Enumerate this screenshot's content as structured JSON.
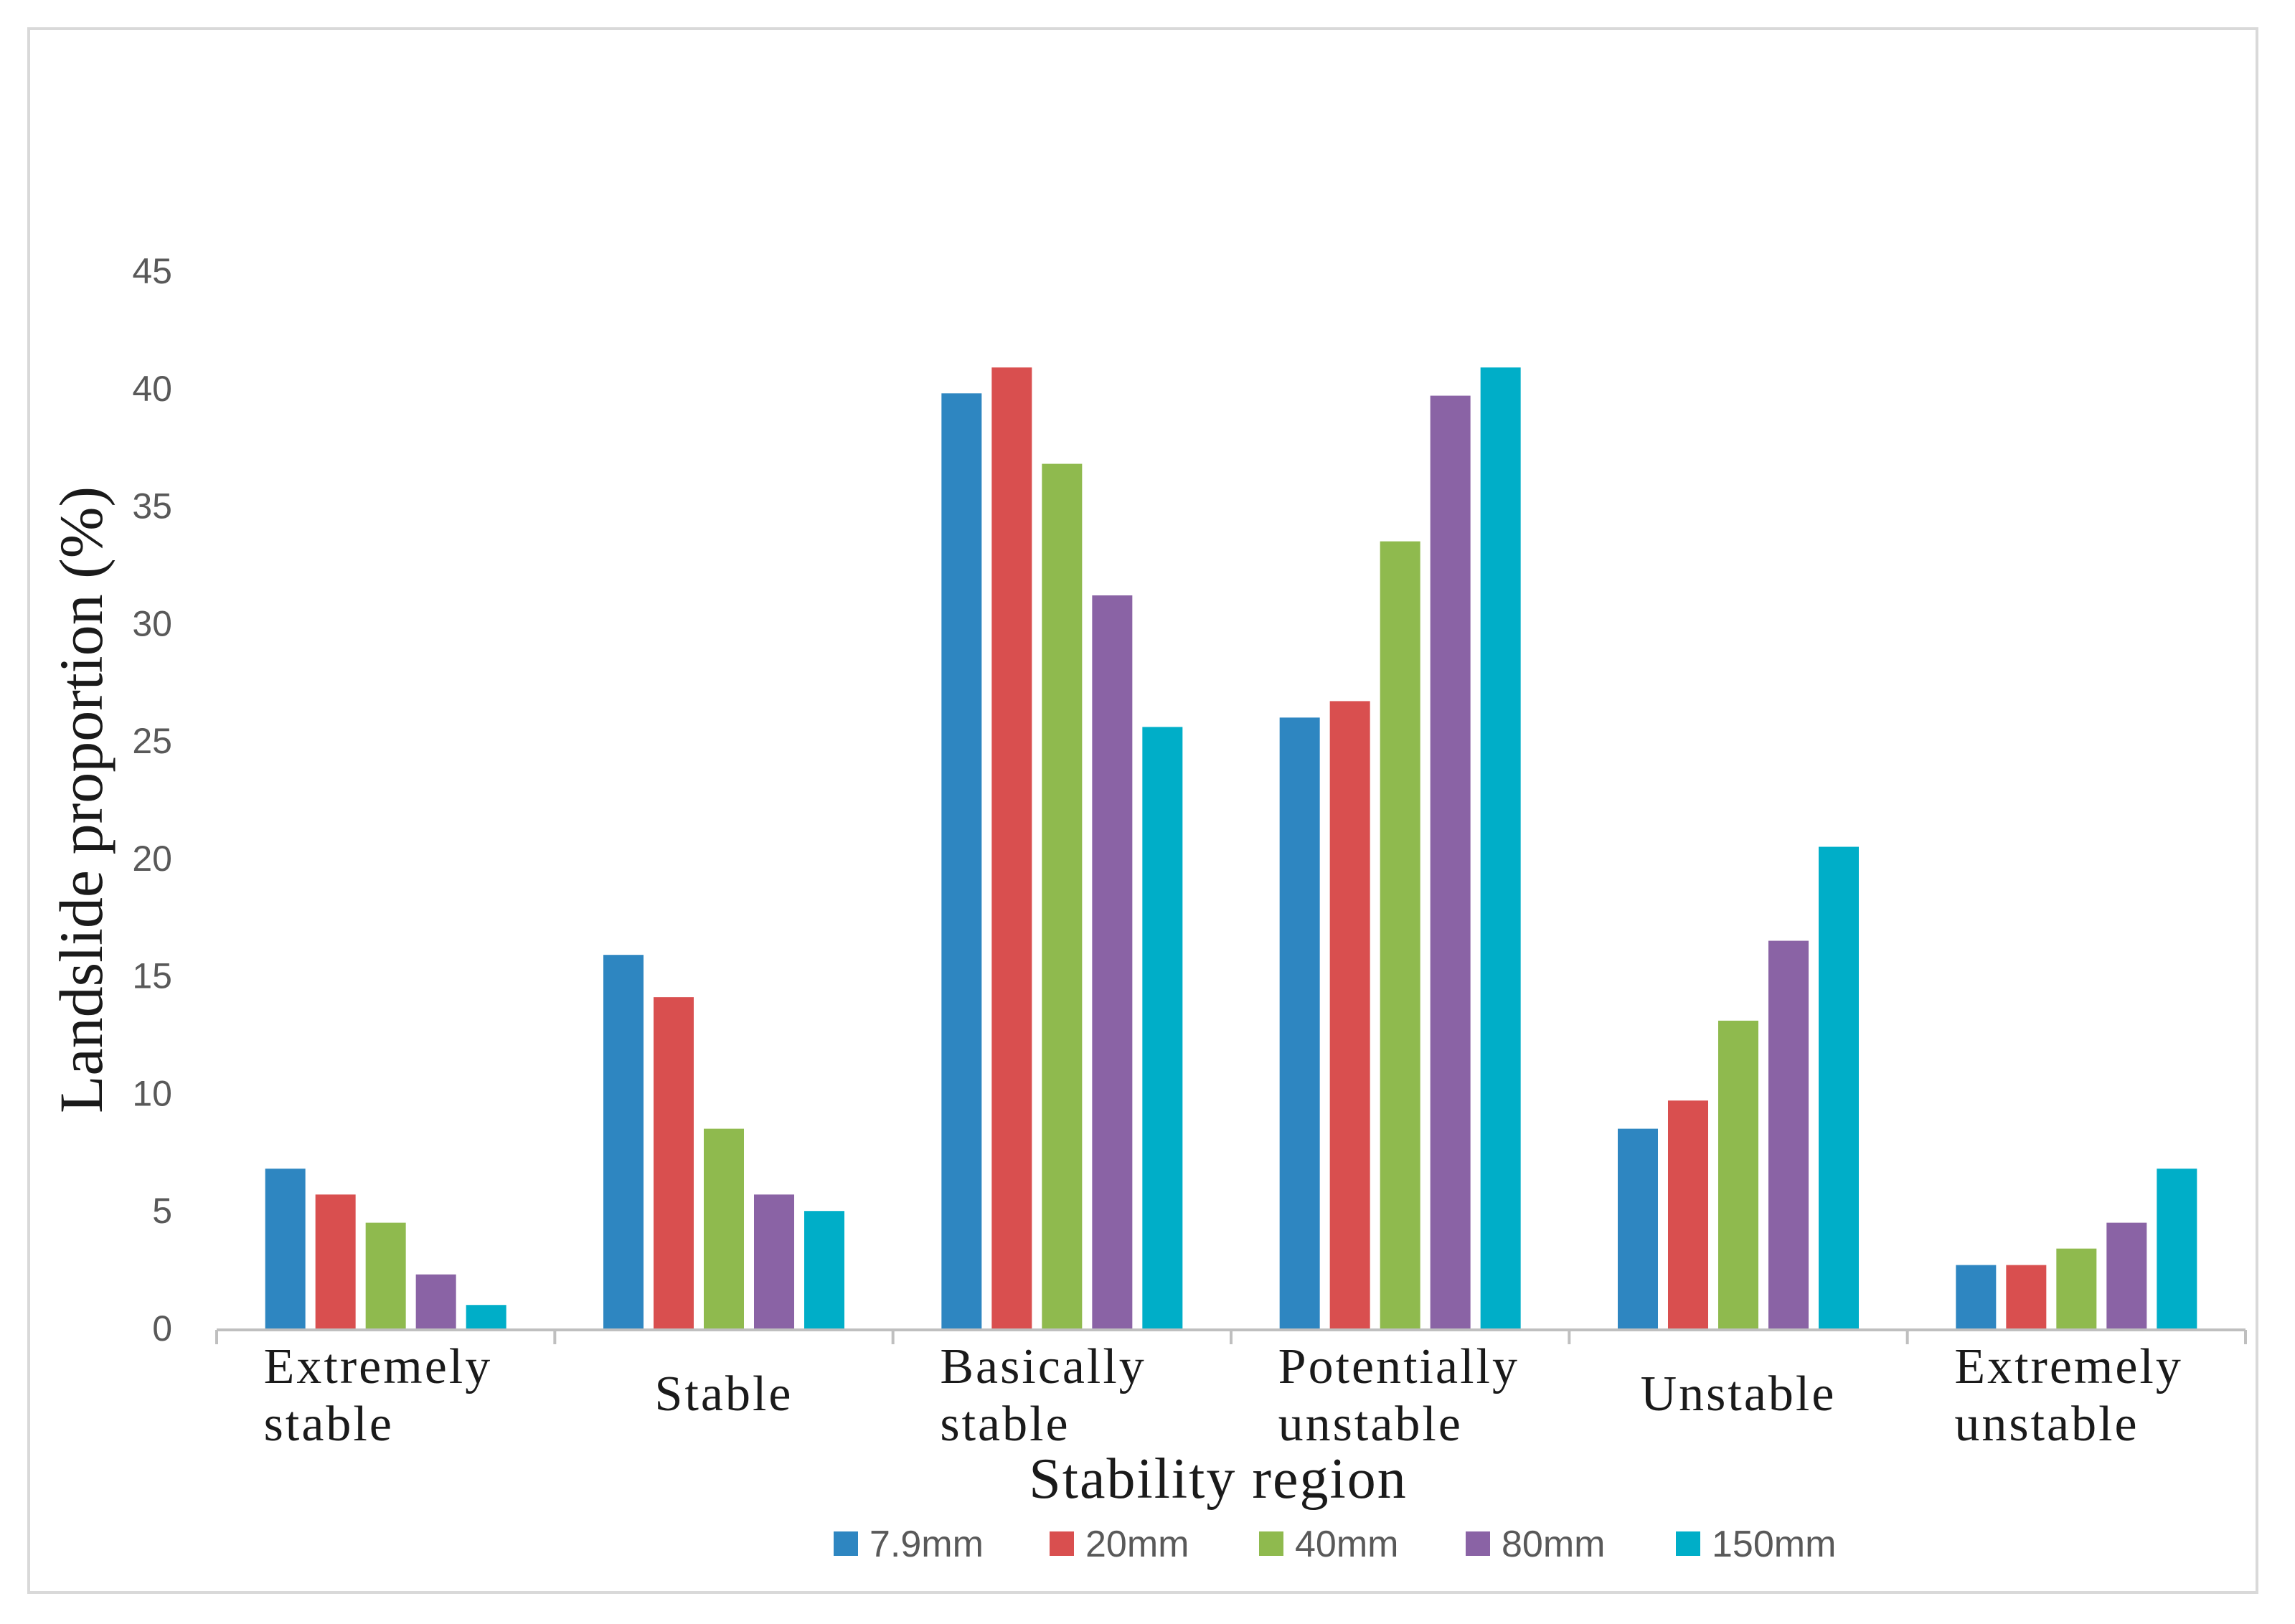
{
  "chart_data": {
    "type": "bar",
    "title": "",
    "xlabel": "Stability region",
    "ylabel": "Landslide proportion (%)",
    "ylim": [
      0,
      45
    ],
    "yticks": [
      0,
      5,
      10,
      15,
      20,
      25,
      30,
      35,
      40,
      45
    ],
    "grid": false,
    "legend_position": "bottom",
    "categories": [
      [
        "Extremely",
        "stable"
      ],
      [
        "Stable"
      ],
      [
        "Basically",
        "stable"
      ],
      [
        "Potentially",
        "unstable"
      ],
      [
        "Unstable"
      ],
      [
        "Extremely",
        "unstable"
      ]
    ],
    "series": [
      {
        "name": "7.9mm",
        "color": "#2e86c1",
        "values": [
          6.8,
          15.9,
          39.8,
          26.0,
          8.5,
          2.7
        ]
      },
      {
        "name": "20mm",
        "color": "#d94f4f",
        "values": [
          5.7,
          14.1,
          40.9,
          26.7,
          9.7,
          2.7
        ]
      },
      {
        "name": "40mm",
        "color": "#8fba4e",
        "values": [
          4.5,
          8.5,
          36.8,
          33.5,
          13.1,
          3.4
        ]
      },
      {
        "name": "80mm",
        "color": "#8a63a5",
        "values": [
          2.3,
          5.7,
          31.2,
          39.7,
          16.5,
          4.5
        ]
      },
      {
        "name": "150mm",
        "color": "#00aec8",
        "values": [
          1.0,
          5.0,
          25.6,
          40.9,
          20.5,
          6.8
        ]
      }
    ]
  }
}
